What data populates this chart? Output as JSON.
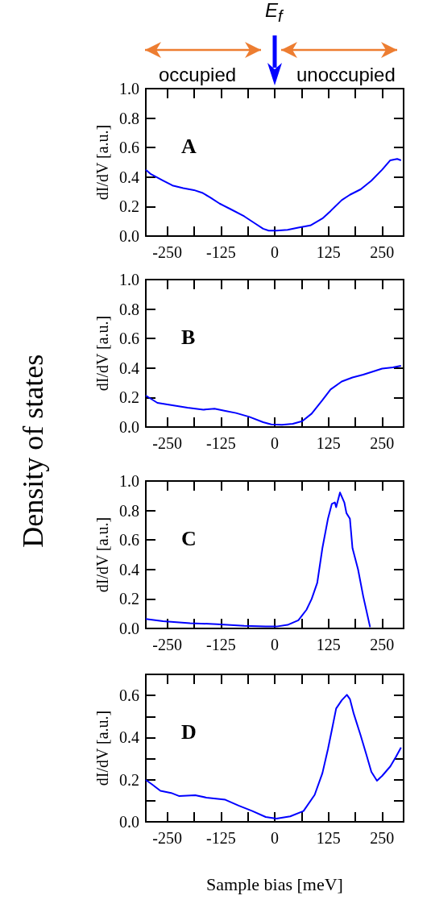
{
  "chart_data": [
    {
      "type": "line",
      "ylabel": "dI/dV [a.u.]",
      "annotations": [
        "A",
        "occupied",
        "unoccupied",
        "E$_{f}$",
        "Density of states"
      ],
      "xlim": [
        -300,
        300
      ],
      "xticks": [
        -250,
        {
          "value": -187.5,
          "label": null
        },
        -125,
        {
          "value": -62.5,
          "label": null
        },
        0,
        {
          "value": 62.5,
          "label": null
        },
        125,
        {
          "value": 187.5,
          "label": null
        },
        250
      ],
      "ylim": [
        0,
        1
      ],
      "yticks": [
        {
          "value": 0,
          "label": "0.0"
        },
        0.2,
        0.4,
        0.6,
        0.8,
        {
          "value": 1,
          "label": "1.0"
        }
      ],
      "grid": false,
      "marker": "none",
      "x": [
        -300,
        -288,
        -260,
        -238,
        -213,
        -188,
        -169,
        -150,
        -128,
        -103,
        -71,
        -46,
        -27,
        -14,
        4,
        30,
        55,
        83,
        111,
        130,
        156,
        175,
        200,
        225,
        250,
        269,
        285,
        294
      ],
      "series": [
        {
          "color": "#0000ff",
          "values": [
            0.45,
            0.42,
            0.376,
            0.343,
            0.325,
            0.312,
            0.294,
            0.262,
            0.22,
            0.183,
            0.134,
            0.086,
            0.05,
            0.037,
            0.037,
            0.042,
            0.057,
            0.072,
            0.119,
            0.17,
            0.244,
            0.28,
            0.317,
            0.376,
            0.45,
            0.514,
            0.523,
            0.514
          ]
        }
      ]
    },
    {
      "type": "line",
      "ylabel": "dI/dV [a.u.]",
      "annotations": [
        "B"
      ],
      "xlim": [
        -300,
        300
      ],
      "xticks": [
        -250,
        {
          "value": -187.5,
          "label": null
        },
        -125,
        {
          "value": -62.5,
          "label": null
        },
        0,
        {
          "value": 62.5,
          "label": null
        },
        125,
        {
          "value": 187.5,
          "label": null
        },
        250
      ],
      "ylim": [
        0,
        1
      ],
      "yticks": [
        {
          "value": 0,
          "label": "0.0"
        },
        0.2,
        0.4,
        0.6,
        0.8,
        {
          "value": 1,
          "label": "1.0"
        }
      ],
      "grid": false,
      "marker": "none",
      "x": [
        -300,
        -273,
        -241,
        -203,
        -166,
        -140,
        -115,
        -90,
        -59,
        -27,
        -8,
        17,
        42,
        64,
        86,
        111,
        130,
        156,
        181,
        206,
        231,
        250,
        275,
        294
      ],
      "series": [
        {
          "color": "#0000ff",
          "values": [
            0.213,
            0.164,
            0.149,
            0.131,
            0.118,
            0.124,
            0.109,
            0.095,
            0.069,
            0.033,
            0.018,
            0.015,
            0.022,
            0.04,
            0.091,
            0.182,
            0.255,
            0.309,
            0.336,
            0.355,
            0.378,
            0.396,
            0.404,
            0.415
          ]
        }
      ]
    },
    {
      "type": "line",
      "ylabel": "dI/dV [a.u.]",
      "annotations": [
        "C"
      ],
      "xlim": [
        -300,
        300
      ],
      "xticks": [
        -250,
        {
          "value": -187.5,
          "label": null
        },
        -125,
        {
          "value": -62.5,
          "label": null
        },
        0,
        {
          "value": 62.5,
          "label": null
        },
        125,
        {
          "value": 187.5,
          "label": null
        },
        250
      ],
      "ylim": [
        0,
        1
      ],
      "yticks": [
        {
          "value": 0,
          "label": "0.0"
        },
        0.2,
        0.4,
        0.6,
        0.8,
        {
          "value": 1,
          "label": "1.0"
        }
      ],
      "grid": false,
      "marker": "none",
      "x": [
        -300,
        -260,
        -197,
        -134,
        -71,
        -21,
        4,
        30,
        55,
        74,
        86,
        99,
        111,
        124,
        133,
        140,
        143,
        152,
        162,
        167,
        175,
        181,
        194,
        206,
        222
      ],
      "series": [
        {
          "color": "#0000ff",
          "values": [
            0.064,
            0.049,
            0.036,
            0.029,
            0.018,
            0.013,
            0.013,
            0.024,
            0.055,
            0.127,
            0.2,
            0.309,
            0.545,
            0.745,
            0.845,
            0.855,
            0.822,
            0.922,
            0.855,
            0.782,
            0.745,
            0.545,
            0.4,
            0.218,
            0.009
          ]
        }
      ]
    },
    {
      "type": "line",
      "ylabel": "dI/dV [a.u.]",
      "xlabel": "Sample bias [meV]",
      "annotations": [
        "D"
      ],
      "xlim": [
        -300,
        300
      ],
      "xticks": [
        -250,
        {
          "value": -187.5,
          "label": null
        },
        -125,
        {
          "value": -62.5,
          "label": null
        },
        0,
        {
          "value": 62.5,
          "label": null
        },
        125,
        {
          "value": 187.5,
          "label": null
        },
        250
      ],
      "ylim": [
        0,
        0.7
      ],
      "yticks": [
        {
          "value": 0,
          "label": "0.0"
        },
        {
          "value": 0.1,
          "label": null
        },
        0.2,
        {
          "value": 0.3,
          "label": null
        },
        0.4,
        {
          "value": 0.5,
          "label": null
        },
        0.6
      ],
      "grid": false,
      "marker": "none",
      "x": [
        -300,
        -285,
        -266,
        -241,
        -222,
        -185,
        -159,
        -115,
        -84,
        -52,
        -21,
        4,
        36,
        67,
        93,
        111,
        124,
        133,
        143,
        156,
        168,
        175,
        184,
        200,
        213,
        225,
        238,
        250,
        269,
        282,
        294
      ],
      "series": [
        {
          "color": "#0000ff",
          "values": [
            0.199,
            0.177,
            0.147,
            0.137,
            0.122,
            0.126,
            0.115,
            0.105,
            0.077,
            0.051,
            0.023,
            0.015,
            0.026,
            0.051,
            0.128,
            0.231,
            0.346,
            0.436,
            0.538,
            0.577,
            0.603,
            0.583,
            0.513,
            0.41,
            0.321,
            0.237,
            0.195,
            0.218,
            0.263,
            0.308,
            0.353
          ]
        }
      ]
    }
  ]
}
